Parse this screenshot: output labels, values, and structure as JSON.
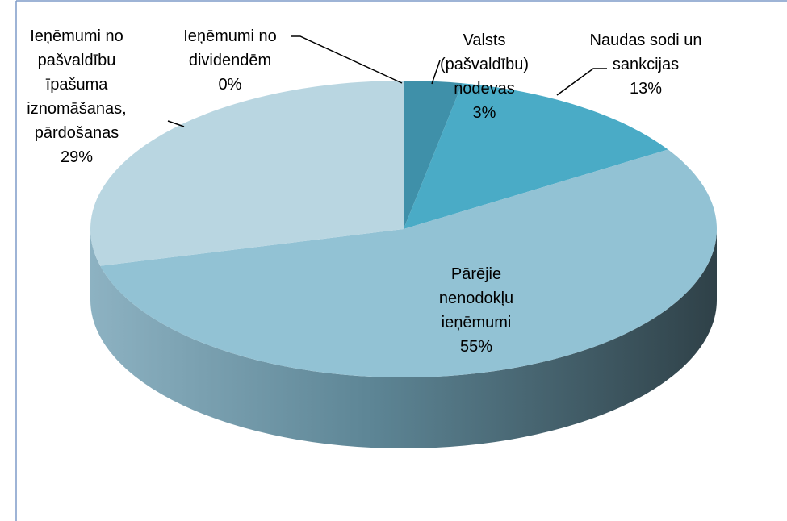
{
  "chart_data": {
    "type": "pie3d",
    "categories": [
      "Valsts (pašvaldību) nodevas",
      "Naudas sodi un sankcijas",
      "Pārējie nenodokļu ieņēmumi",
      "Ieņēmumi no pašvaldību īpašuma iznomāšanas, pārdošanas",
      "Ieņēmumi no dividendēm"
    ],
    "values": [
      3,
      13,
      55,
      29,
      0
    ],
    "value_labels": [
      "3%",
      "13%",
      "55%",
      "29%",
      "0%"
    ],
    "colors": [
      "#3f90a9",
      "#4aabc6",
      "#92c2d4",
      "#b9d6e1",
      "#2f6f84"
    ]
  }
}
